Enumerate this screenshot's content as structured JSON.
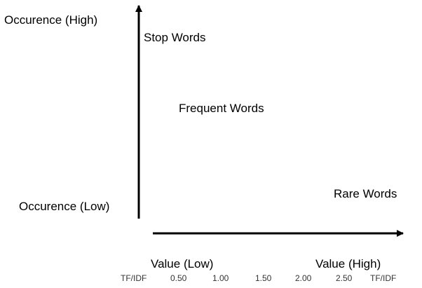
{
  "axes": {
    "y_top_label": "Occurence (High)",
    "y_bottom_label": "Occurence (Low)",
    "x_left_label": "Value (Low)",
    "x_right_label": "Value (High)"
  },
  "regions": {
    "stop_words": "Stop Words",
    "frequent_words": "Frequent Words",
    "rare_words": "Rare Words"
  },
  "x_scale": {
    "start_label": "TF/IDF",
    "ticks": [
      "0.50",
      "1.00",
      "1.50",
      "2.00",
      "2.50"
    ],
    "end_label": "TF/IDF"
  }
}
